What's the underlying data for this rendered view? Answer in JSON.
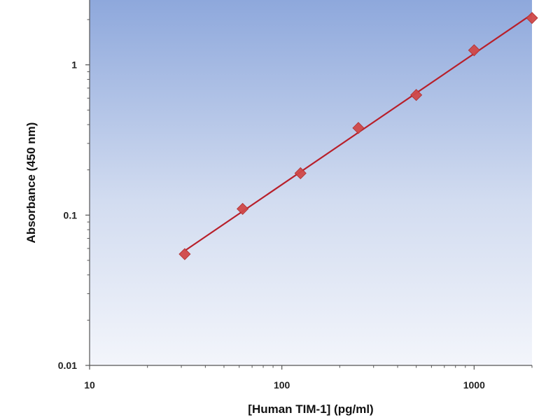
{
  "chart_data": {
    "type": "scatter",
    "title": "",
    "xlabel": "[Human TIM-1] (pg/ml)",
    "ylabel": "Absorbance (450 nm)",
    "x_scale": "log",
    "y_scale": "log",
    "xlim": [
      10,
      2000
    ],
    "ylim": [
      0.01,
      2.7
    ],
    "x_ticks": [
      10,
      100,
      1000
    ],
    "x_tick_labels": [
      "10",
      "100",
      "1000"
    ],
    "y_ticks": [
      0.01,
      0.1,
      1
    ],
    "y_tick_labels": [
      "0.01",
      "0.1",
      "1"
    ],
    "grid": false,
    "legend": "none",
    "background_gradient": [
      "#8ea8dc",
      "#d2dcf0",
      "#f3f5fb"
    ],
    "series": [
      {
        "x": [
          31.25,
          62.5,
          125,
          250,
          500,
          1000,
          2000
        ],
        "y": [
          0.055,
          0.11,
          0.19,
          0.38,
          0.63,
          1.25,
          2.05
        ],
        "marker": "diamond",
        "marker_color": "#d04848",
        "line_color": "#b81f2a",
        "fit": "linear-log-log"
      }
    ]
  }
}
